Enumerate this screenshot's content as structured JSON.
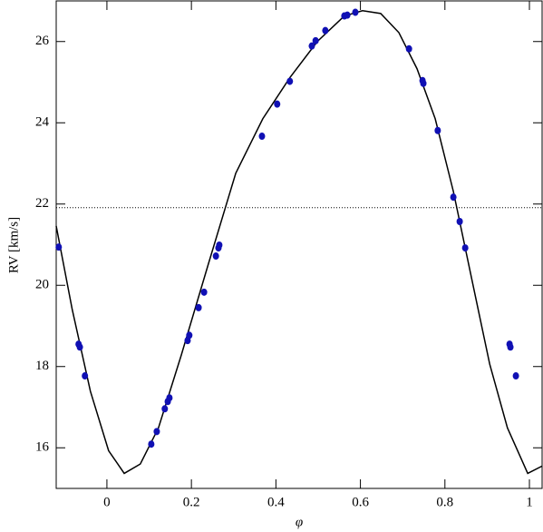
{
  "chart_data": {
    "type": "scatter",
    "xlabel": "φ",
    "ylabel": "RV [km/s]",
    "xlim": [
      -0.12,
      1.03
    ],
    "ylim": [
      15.0,
      27.0
    ],
    "xticks": [
      0,
      0.2,
      0.4,
      0.6,
      0.8,
      1
    ],
    "yticks": [
      16,
      18,
      20,
      22,
      24,
      26
    ],
    "hline": 21.91,
    "series": [
      {
        "type": "line",
        "color": "#000000",
        "x": [
          -0.12,
          -0.082,
          -0.039,
          0.004,
          0.041,
          0.079,
          0.122,
          0.176,
          0.24,
          0.305,
          0.369,
          0.433,
          0.498,
          0.562,
          0.605,
          0.648,
          0.691,
          0.734,
          0.777,
          0.82,
          0.863,
          0.906,
          0.948,
          0.996,
          1.03
        ],
        "values": [
          21.46,
          19.4,
          17.39,
          15.93,
          15.37,
          15.6,
          16.49,
          18.28,
          20.52,
          22.76,
          24.1,
          25.11,
          26.0,
          26.63,
          26.76,
          26.69,
          26.22,
          25.33,
          24.1,
          22.31,
          20.18,
          18.06,
          16.49,
          15.37,
          15.55
        ]
      },
      {
        "type": "scatter",
        "color": "#1010b4",
        "x": [
          -0.114,
          -0.067,
          -0.064,
          -0.052,
          0.105,
          0.118,
          0.137,
          0.144,
          0.148,
          0.191,
          0.195,
          0.217,
          0.23,
          0.258,
          0.264,
          0.266,
          0.367,
          0.403,
          0.433,
          0.485,
          0.494,
          0.517,
          0.562,
          0.569,
          0.588,
          0.715,
          0.747,
          0.749,
          0.783,
          0.82,
          0.835,
          0.848,
          0.953,
          0.955,
          0.968
        ],
        "values": [
          20.94,
          18.55,
          18.48,
          17.77,
          16.09,
          16.4,
          16.96,
          17.14,
          17.23,
          18.64,
          18.77,
          19.45,
          19.83,
          20.72,
          20.92,
          20.99,
          23.67,
          24.46,
          25.02,
          25.89,
          26.02,
          26.27,
          26.63,
          26.65,
          26.72,
          25.82,
          25.04,
          24.97,
          23.81,
          22.17,
          21.57,
          20.92,
          18.55,
          18.48,
          17.77
        ]
      }
    ]
  }
}
